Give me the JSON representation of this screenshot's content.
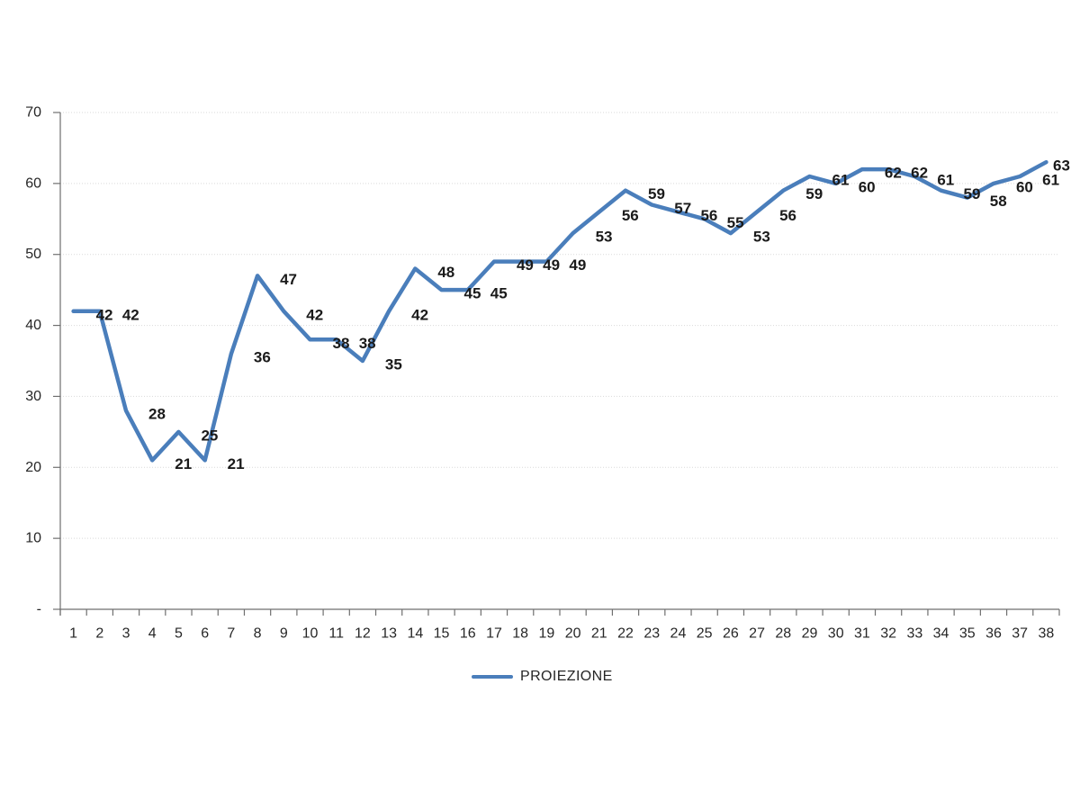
{
  "chart_data": {
    "type": "line",
    "title": "",
    "xlabel": "",
    "ylabel": "",
    "categories": [
      "1",
      "2",
      "3",
      "4",
      "5",
      "6",
      "7",
      "8",
      "9",
      "10",
      "11",
      "12",
      "13",
      "14",
      "15",
      "16",
      "17",
      "18",
      "19",
      "20",
      "21",
      "22",
      "23",
      "24",
      "25",
      "26",
      "27",
      "28",
      "29",
      "30",
      "31",
      "32",
      "33",
      "34",
      "35",
      "36",
      "37",
      "38"
    ],
    "series": [
      {
        "name": "PROIEZIONE",
        "color": "#4A7EBB",
        "values": [
          42,
          42,
          28,
          21,
          25,
          21,
          36,
          47,
          42,
          38,
          38,
          35,
          42,
          48,
          45,
          45,
          49,
          49,
          49,
          53,
          56,
          59,
          57,
          56,
          55,
          53,
          56,
          59,
          61,
          60,
          62,
          62,
          61,
          59,
          58,
          60,
          61,
          63
        ]
      }
    ],
    "data_labels_shown": true,
    "ylim": [
      0,
      70
    ],
    "y_ticks": [
      {
        "value": 0,
        "label": "-"
      },
      {
        "value": 10,
        "label": "10"
      },
      {
        "value": 20,
        "label": "20"
      },
      {
        "value": 30,
        "label": "30"
      },
      {
        "value": 40,
        "label": "40"
      },
      {
        "value": 50,
        "label": "50"
      },
      {
        "value": 60,
        "label": "60"
      },
      {
        "value": 70,
        "label": "70"
      }
    ],
    "grid": "horizontal-dotted",
    "legend_position": "bottom",
    "colors": {
      "series": "#4A7EBB",
      "gridline": "#D9D9D9",
      "axis": "#6F6F6F",
      "tick_text": "#262626",
      "data_label_text": "#1A1A1A"
    }
  }
}
